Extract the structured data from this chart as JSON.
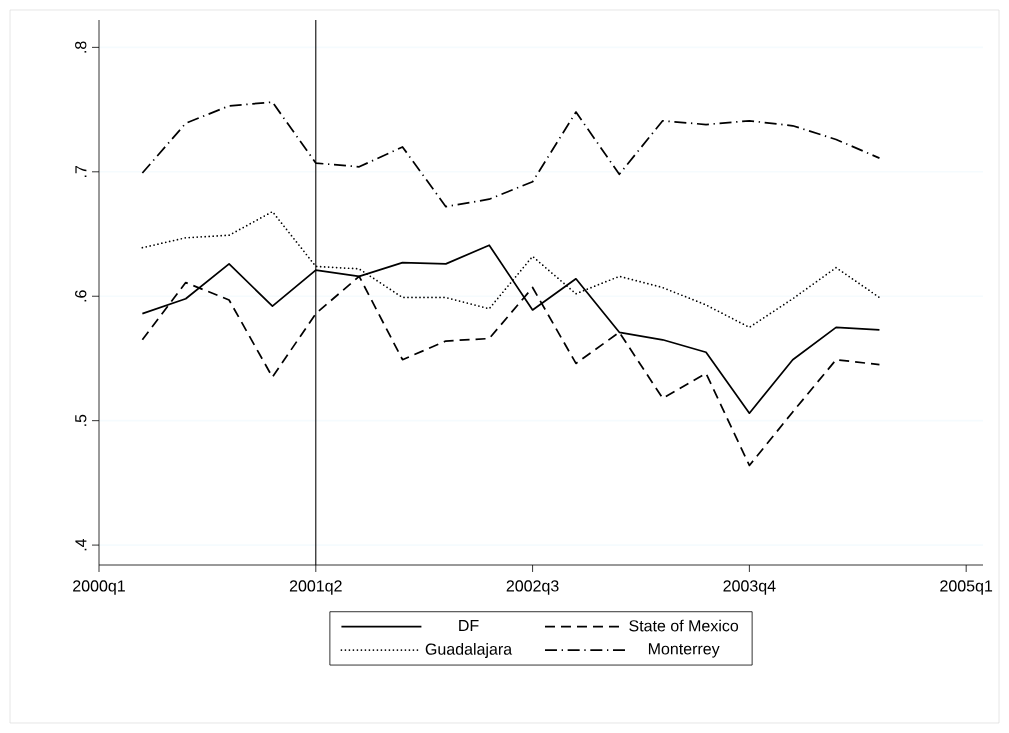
{
  "chart_data": {
    "type": "line",
    "x": [
      "2000-04",
      "2000-07",
      "2000-10",
      "2001-01",
      "2001-04",
      "2001-07",
      "2001-10",
      "2002-01",
      "2002-04",
      "2002-07",
      "2002-10",
      "2003-01",
      "2003-04",
      "2003-07",
      "2003-10",
      "2004-01",
      "2004-04",
      "2004-07"
    ],
    "series": [
      {
        "name": "DF",
        "color": "#000000",
        "line_style": "solid",
        "values": [
          0.586,
          0.598,
          0.626,
          0.592,
          0.621,
          0.616,
          0.627,
          0.626,
          0.641,
          0.589,
          0.614,
          0.571,
          0.565,
          0.555,
          0.506,
          0.549,
          0.575,
          0.573
        ]
      },
      {
        "name": "State of Mexico",
        "color": "#000000",
        "line_style": "dashed",
        "values": [
          0.565,
          0.611,
          0.597,
          0.535,
          0.586,
          0.616,
          0.549,
          0.564,
          0.566,
          0.607,
          0.546,
          0.571,
          0.518,
          0.538,
          0.464,
          0.507,
          0.549,
          0.545
        ]
      },
      {
        "name": "Guadalajara",
        "color": "#000000",
        "line_style": "dotted",
        "values": [
          0.639,
          0.647,
          0.649,
          0.668,
          0.624,
          0.622,
          0.599,
          0.599,
          0.59,
          0.632,
          0.602,
          0.616,
          0.607,
          0.593,
          0.575,
          0.598,
          0.623,
          0.599
        ]
      },
      {
        "name": "Monterrey",
        "color": "#000000",
        "line_style": "dashdot",
        "values": [
          0.699,
          0.739,
          0.753,
          0.756,
          0.707,
          0.704,
          0.72,
          0.672,
          0.678,
          0.692,
          0.748,
          0.698,
          0.741,
          0.738,
          0.741,
          0.737,
          0.726,
          0.711
        ]
      }
    ],
    "xlim": [
      "2000-01",
      "2005-02-06"
    ],
    "xticks": [
      {
        "value": "2000-01",
        "label": "2000q1"
      },
      {
        "value": "2001-04",
        "label": "2001q2"
      },
      {
        "value": "2002-07",
        "label": "2002q3"
      },
      {
        "value": "2003-10",
        "label": "2003q4"
      },
      {
        "value": "2005-01",
        "label": "2005q1"
      }
    ],
    "ylim": [
      0.384,
      0.822
    ],
    "yticks": [
      {
        "value": 0.4,
        "label": ".4"
      },
      {
        "value": 0.5,
        "label": ".5"
      },
      {
        "value": 0.6,
        "label": ".6"
      },
      {
        "value": 0.7,
        "label": ".7"
      },
      {
        "value": 0.8,
        "label": ".8"
      }
    ],
    "grid": "y",
    "legend": "bottom",
    "ref_lines": [
      {
        "axis": "x",
        "value": "2001-04",
        "color": "#000000"
      }
    ]
  }
}
